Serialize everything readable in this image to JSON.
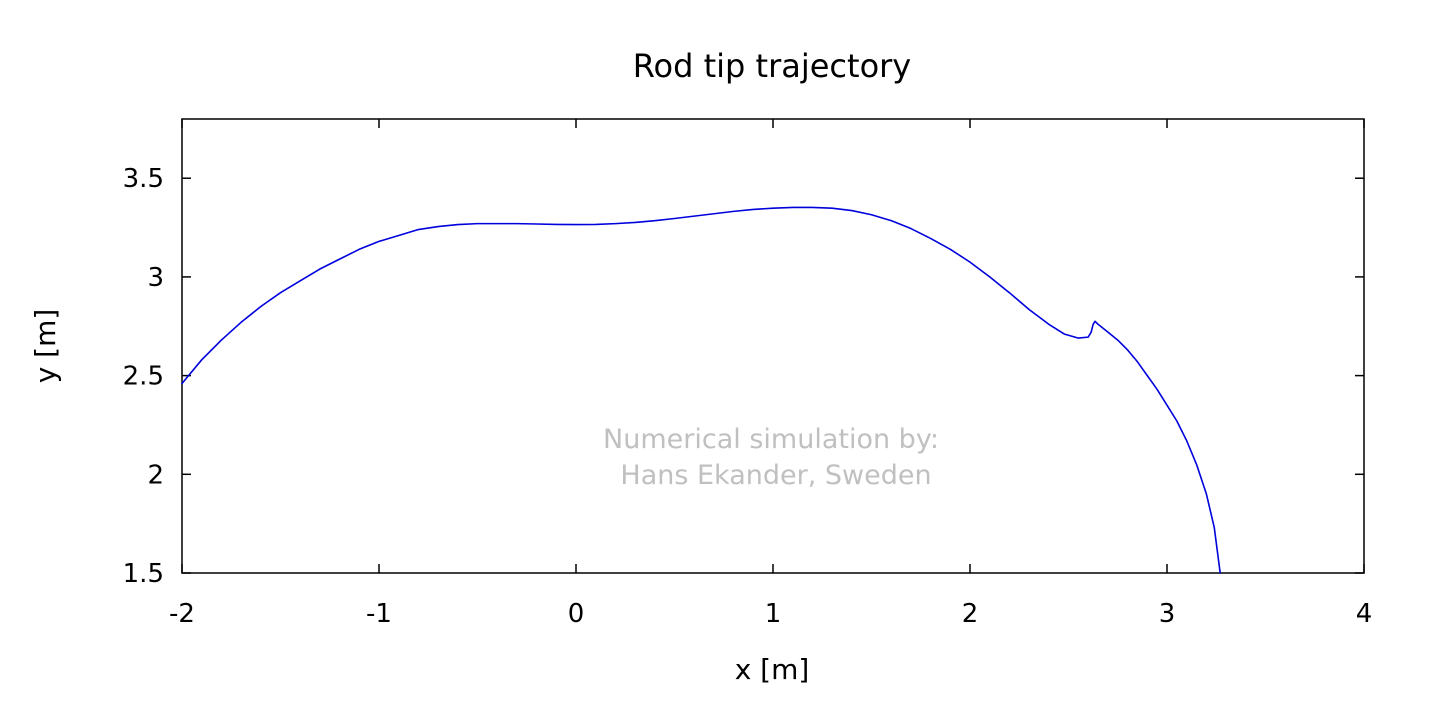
{
  "chart_data": {
    "type": "line",
    "title": "Rod tip trajectory",
    "xlabel": "x [m]",
    "ylabel": "y [m]",
    "xlim": [
      -2,
      4
    ],
    "ylim": [
      1.5,
      3.8
    ],
    "xticks": [
      -2,
      -1,
      0,
      1,
      2,
      3,
      4
    ],
    "xtick_labels": [
      "-2",
      "-1",
      "0",
      "1",
      "2",
      "3",
      "4"
    ],
    "yticks": [
      1.5,
      2,
      2.5,
      3,
      3.5
    ],
    "ytick_labels": [
      "1.5",
      "2",
      "2.5",
      "3",
      "3.5"
    ],
    "grid": false,
    "legend": "none",
    "annotation": {
      "lines": [
        "Numerical simulation by:",
        "Hans Ekander, Sweden"
      ],
      "color": "#c0c0c0"
    },
    "series": [
      {
        "color": "#0000dd",
        "points": [
          [
            -2.0,
            2.46
          ],
          [
            -1.9,
            2.58
          ],
          [
            -1.8,
            2.68
          ],
          [
            -1.7,
            2.77
          ],
          [
            -1.6,
            2.85
          ],
          [
            -1.5,
            2.92
          ],
          [
            -1.4,
            2.98
          ],
          [
            -1.3,
            3.04
          ],
          [
            -1.2,
            3.09
          ],
          [
            -1.1,
            3.14
          ],
          [
            -1.0,
            3.18
          ],
          [
            -0.9,
            3.21
          ],
          [
            -0.8,
            3.24
          ],
          [
            -0.7,
            3.255
          ],
          [
            -0.6,
            3.265
          ],
          [
            -0.5,
            3.27
          ],
          [
            -0.4,
            3.27
          ],
          [
            -0.3,
            3.27
          ],
          [
            -0.2,
            3.268
          ],
          [
            -0.1,
            3.266
          ],
          [
            0.0,
            3.265
          ],
          [
            0.1,
            3.266
          ],
          [
            0.2,
            3.27
          ],
          [
            0.3,
            3.276
          ],
          [
            0.4,
            3.285
          ],
          [
            0.5,
            3.296
          ],
          [
            0.6,
            3.308
          ],
          [
            0.7,
            3.32
          ],
          [
            0.8,
            3.332
          ],
          [
            0.9,
            3.342
          ],
          [
            1.0,
            3.348
          ],
          [
            1.1,
            3.352
          ],
          [
            1.2,
            3.352
          ],
          [
            1.3,
            3.348
          ],
          [
            1.4,
            3.336
          ],
          [
            1.5,
            3.315
          ],
          [
            1.6,
            3.285
          ],
          [
            1.7,
            3.245
          ],
          [
            1.8,
            3.195
          ],
          [
            1.9,
            3.14
          ],
          [
            2.0,
            3.075
          ],
          [
            2.1,
            3.0
          ],
          [
            2.2,
            2.92
          ],
          [
            2.3,
            2.835
          ],
          [
            2.4,
            2.76
          ],
          [
            2.48,
            2.71
          ],
          [
            2.55,
            2.69
          ],
          [
            2.6,
            2.695
          ],
          [
            2.615,
            2.72
          ],
          [
            2.625,
            2.76
          ],
          [
            2.635,
            2.775
          ],
          [
            2.65,
            2.76
          ],
          [
            2.7,
            2.72
          ],
          [
            2.75,
            2.68
          ],
          [
            2.8,
            2.63
          ],
          [
            2.85,
            2.57
          ],
          [
            2.9,
            2.5
          ],
          [
            2.95,
            2.43
          ],
          [
            3.0,
            2.35
          ],
          [
            3.05,
            2.27
          ],
          [
            3.1,
            2.17
          ],
          [
            3.15,
            2.05
          ],
          [
            3.2,
            1.9
          ],
          [
            3.24,
            1.73
          ],
          [
            3.27,
            1.5
          ]
        ]
      }
    ]
  }
}
